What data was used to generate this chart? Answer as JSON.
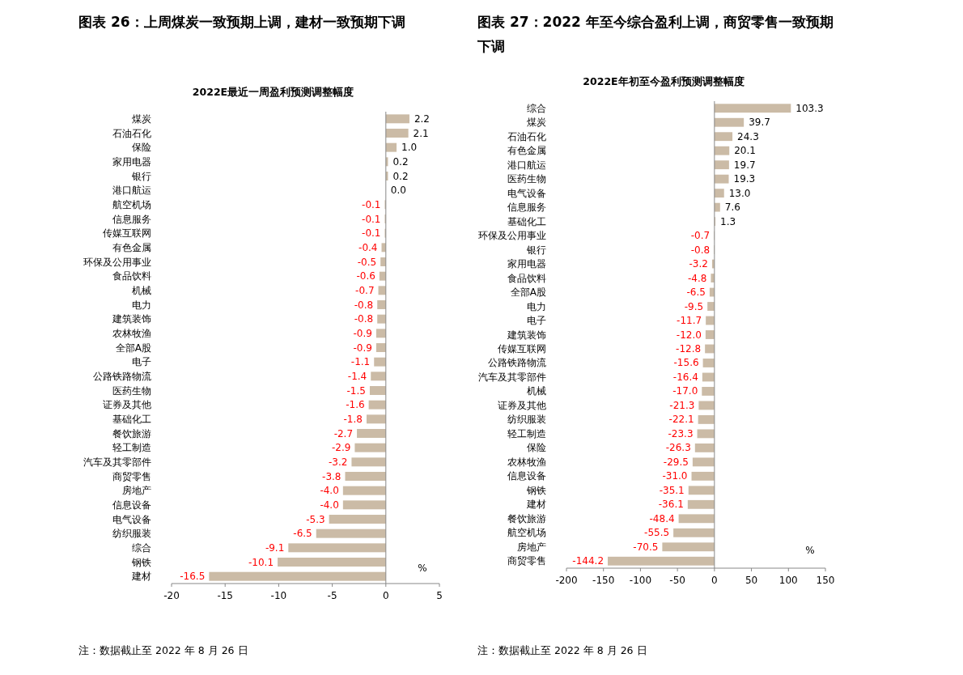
{
  "chart_data": [
    {
      "type": "bar",
      "orientation": "horizontal",
      "title": "图表 26：上周煤炭一致预期上调，建材一致预期下调",
      "subtitle": "2022E最近一周盈利预测调整幅度",
      "categories": [
        "煤炭",
        "石油石化",
        "保险",
        "家用电器",
        "银行",
        "港口航运",
        "航空机场",
        "信息服务",
        "传媒互联网",
        "有色金属",
        "环保及公用事业",
        "食品饮料",
        "机械",
        "电力",
        "建筑装饰",
        "农林牧渔",
        "全部A股",
        "电子",
        "公路铁路物流",
        "医药生物",
        "证券及其他",
        "基础化工",
        "餐饮旅游",
        "轻工制造",
        "汽车及其零部件",
        "商贸零售",
        "房地产",
        "信息设备",
        "电气设备",
        "纺织服装",
        "综合",
        "钢铁",
        "建材"
      ],
      "values": [
        2.2,
        2.1,
        1.0,
        0.2,
        0.2,
        0.0,
        -0.1,
        -0.1,
        -0.1,
        -0.4,
        -0.5,
        -0.6,
        -0.7,
        -0.8,
        -0.8,
        -0.9,
        -0.9,
        -1.1,
        -1.4,
        -1.5,
        -1.6,
        -1.8,
        -2.7,
        -2.9,
        -3.2,
        -3.8,
        -4.0,
        -4.0,
        -5.3,
        -6.5,
        -9.1,
        -10.1,
        -16.5
      ],
      "value_labels": [
        "2.2",
        "2.1",
        "1.0",
        "0.2",
        "0.2",
        "0.0",
        "-0.1",
        "-0.1",
        "-0.1",
        "-0.4",
        "-0.5",
        "-0.6",
        "-0.7",
        "-0.8",
        "-0.8",
        "-0.9",
        "-0.9",
        "-1.1",
        "-1.4",
        "-1.5",
        "-1.6",
        "-1.8",
        "-2.7",
        "-2.9",
        "-3.2",
        "-3.8",
        "-4.0",
        "-4.0",
        "-5.3",
        "-6.5",
        "-9.1",
        "-10.1",
        "-16.5"
      ],
      "color": "#cbbba6",
      "xlim": [
        -20,
        5
      ],
      "xticks": [
        -20,
        -15,
        -10,
        -5,
        0,
        5
      ],
      "annotations": [
        "%",
        "注：数据截止至 2022 年 8 月 26 日"
      ]
    },
    {
      "type": "bar",
      "orientation": "horizontal",
      "title": "图表 27：2022 年至今综合盈利上调，商贸零售一致预期下调",
      "subtitle": "2022E年初至今盈利预测调整幅度",
      "categories": [
        "综合",
        "煤炭",
        "石油石化",
        "有色金属",
        "港口航运",
        "医药生物",
        "电气设备",
        "信息服务",
        "基础化工",
        "环保及公用事业",
        "银行",
        "家用电器",
        "食品饮料",
        "全部A股",
        "电力",
        "电子",
        "建筑装饰",
        "传媒互联网",
        "公路铁路物流",
        "汽车及其零部件",
        "机械",
        "证券及其他",
        "纺织服装",
        "轻工制造",
        "保险",
        "农林牧渔",
        "信息设备",
        "钢铁",
        "建材",
        "餐饮旅游",
        "航空机场",
        "房地产",
        "商贸零售"
      ],
      "values": [
        103.3,
        39.7,
        24.3,
        20.1,
        19.7,
        19.3,
        13.0,
        7.6,
        1.3,
        -0.7,
        -0.8,
        -3.2,
        -4.8,
        -6.5,
        -9.5,
        -11.7,
        -12.0,
        -12.8,
        -15.6,
        -16.4,
        -17.0,
        -21.3,
        -22.1,
        -23.3,
        -26.3,
        -29.5,
        -31.0,
        -35.1,
        -36.1,
        -48.4,
        -55.5,
        -70.5,
        -144.2
      ],
      "value_labels": [
        "103.3",
        "39.7",
        "24.3",
        "20.1",
        "19.7",
        "19.3",
        "13.0",
        "7.6",
        "1.3",
        "-0.7",
        "-0.8",
        "-3.2",
        "-4.8",
        "-6.5",
        "-9.5",
        "-11.7",
        "-12.0",
        "-12.8",
        "-15.6",
        "-16.4",
        "-17.0",
        "-21.3",
        "-22.1",
        "-23.3",
        "-26.3",
        "-29.5",
        "-31.0",
        "-35.1",
        "-36.1",
        "-48.4",
        "-55.5",
        "-70.5",
        "-144.2"
      ],
      "color": "#cbbba6",
      "xlim": [
        -200,
        150
      ],
      "xticks": [
        -200,
        -150,
        -100,
        -50,
        0,
        50,
        100,
        150
      ],
      "annotations": [
        "%",
        "注：数据截止至 2022 年 8 月 26 日"
      ]
    }
  ]
}
